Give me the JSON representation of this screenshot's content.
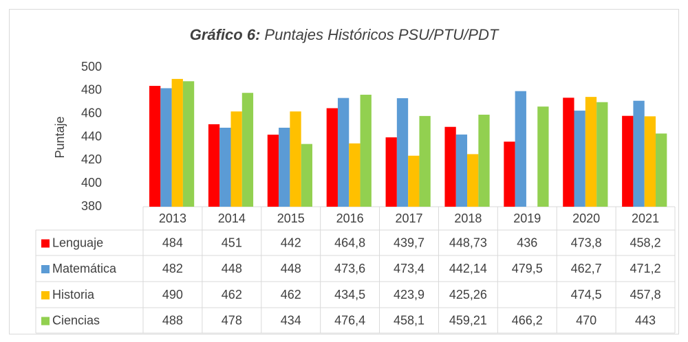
{
  "chart_data": {
    "type": "bar",
    "title_lead": "Gráfico 6:",
    "title": "Puntajes Históricos PSU/PTU/PDT",
    "y_label": "Puntaje",
    "categories": [
      "2013",
      "2014",
      "2015",
      "2016",
      "2017",
      "2018",
      "2019",
      "2020",
      "2021"
    ],
    "series": [
      {
        "name": "Lenguaje",
        "color": "#ff0000",
        "values": [
          484,
          451,
          442,
          464.8,
          439.7,
          448.73,
          436,
          473.8,
          458.2
        ],
        "value_labels": [
          "484",
          "451",
          "442",
          "464,8",
          "439,7",
          "448,73",
          "436",
          "473,8",
          "458,2"
        ]
      },
      {
        "name": "Matemática",
        "color": "#5b9bd5",
        "values": [
          482,
          448,
          448,
          473.6,
          473.4,
          442.14,
          479.5,
          462.7,
          471.2
        ],
        "value_labels": [
          "482",
          "448",
          "448",
          "473,6",
          "473,4",
          "442,14",
          "479,5",
          "462,7",
          "471,2"
        ]
      },
      {
        "name": "Historia",
        "color": "#ffc000",
        "values": [
          490,
          462,
          462,
          434.5,
          423.9,
          425.26,
          null,
          474.5,
          457.8
        ],
        "value_labels": [
          "490",
          "462",
          "462",
          "434,5",
          "423,9",
          "425,26",
          null,
          "474,5",
          "457,8"
        ]
      },
      {
        "name": "Ciencias",
        "color": "#92d050",
        "values": [
          488,
          478,
          434,
          476.4,
          458.1,
          459.21,
          466.2,
          470,
          443
        ],
        "value_labels": [
          "488",
          "478",
          "434",
          "476,4",
          "458,1",
          "459,21",
          "466,2",
          "470",
          "443"
        ]
      }
    ],
    "ylim": [
      380,
      500
    ],
    "yticks": [
      380,
      400,
      420,
      440,
      460,
      480,
      500
    ],
    "grid": false
  }
}
